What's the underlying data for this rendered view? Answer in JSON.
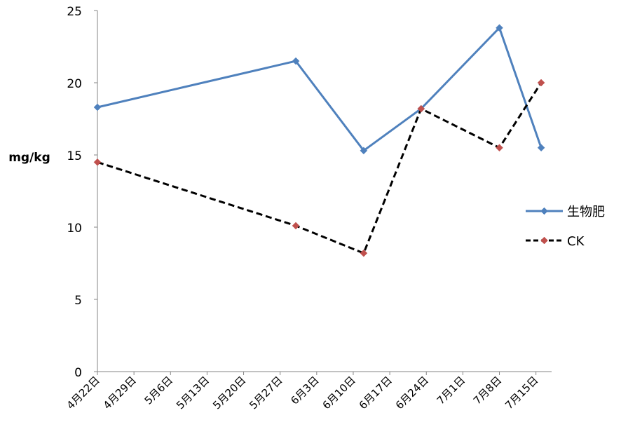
{
  "chart_data": {
    "type": "line",
    "ylabel": "mg/kg",
    "ylim": [
      0,
      25
    ],
    "yticks": [
      "0",
      "5",
      "10",
      "15",
      "20",
      "25"
    ],
    "xlim": [
      "2011-04-22",
      "2011-07-18"
    ],
    "x_tick_labels": [
      "4月22日",
      "4月29日",
      "5月6日",
      "5月13日",
      "5月20日",
      "5月27日",
      "6月3日",
      "6月10日",
      "6月17日",
      "6月24日",
      "7月1日",
      "7月8日",
      "7月15日"
    ],
    "legend_position": "right",
    "series": [
      {
        "name": "生物肥",
        "color": "#4F81BD",
        "line_style": "solid",
        "marker": "diamond",
        "marker_color": "#4F81BD",
        "points": [
          {
            "x": "2011-04-22",
            "y": 18.3
          },
          {
            "x": "2011-05-30",
            "y": 21.5
          },
          {
            "x": "2011-06-12",
            "y": 15.3
          },
          {
            "x": "2011-06-23",
            "y": 18.2
          },
          {
            "x": "2011-07-08",
            "y": 23.8
          },
          {
            "x": "2011-07-16",
            "y": 15.5
          }
        ]
      },
      {
        "name": "CK",
        "color": "#000000",
        "line_style": "dashed",
        "marker": "diamond",
        "marker_color": "#C0504D",
        "points": [
          {
            "x": "2011-04-22",
            "y": 14.5
          },
          {
            "x": "2011-05-30",
            "y": 10.1
          },
          {
            "x": "2011-06-12",
            "y": 8.2
          },
          {
            "x": "2011-06-23",
            "y": 18.2
          },
          {
            "x": "2011-07-08",
            "y": 15.5
          },
          {
            "x": "2011-07-16",
            "y": 20.0
          }
        ]
      }
    ]
  }
}
